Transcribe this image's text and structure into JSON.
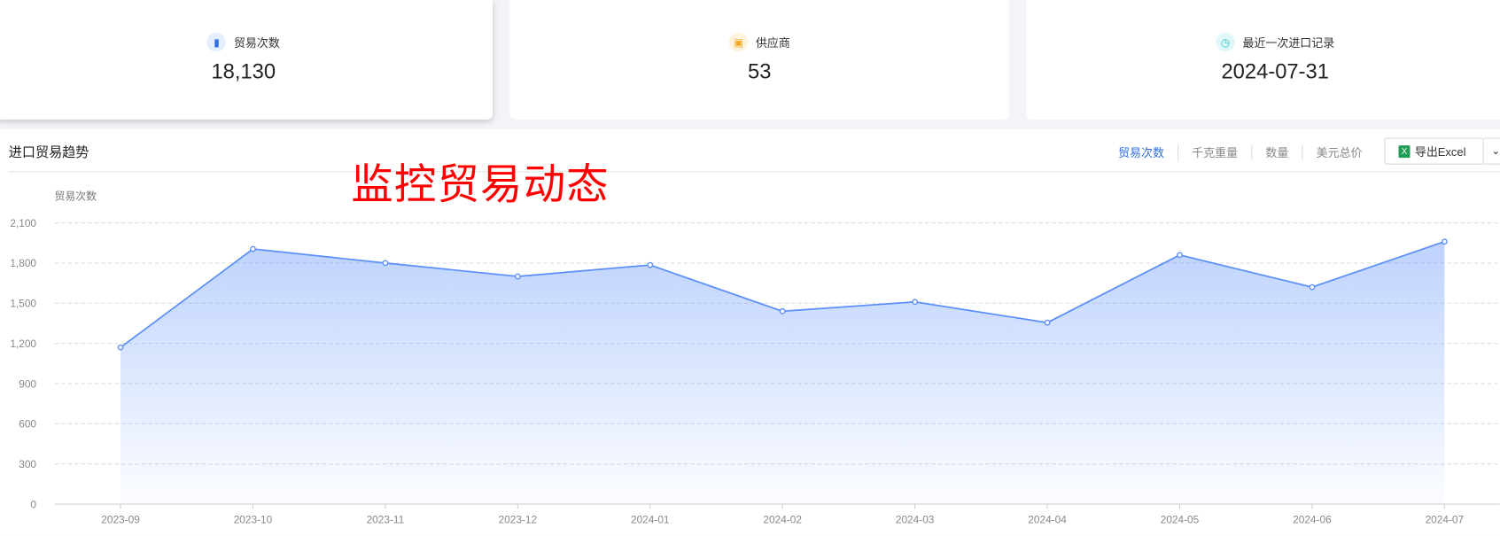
{
  "stats": [
    {
      "label": "贸易次数",
      "value": "18,130",
      "icon": "bar-chart-icon",
      "color": "#2f6fe0",
      "bg": "#e6efff"
    },
    {
      "label": "供应商",
      "value": "53",
      "icon": "store-icon",
      "color": "#f5a623",
      "bg": "#fff3e0"
    },
    {
      "label": "最近一次进口记录",
      "value": "2024-07-31",
      "icon": "clock-icon",
      "color": "#1cc3c3",
      "bg": "#e2f8f8"
    }
  ],
  "panel": {
    "title": "进口贸易趋势",
    "tabs": [
      "贸易次数",
      "千克重量",
      "数量",
      "美元总价"
    ],
    "active_tab": "贸易次数",
    "export_label": "导出Excel",
    "overlay_text": "监控贸易动态"
  },
  "chart_data": {
    "type": "area",
    "ylabel": "贸易次数",
    "categories": [
      "2023-09",
      "2023-10",
      "2023-11",
      "2023-12",
      "2024-01",
      "2024-02",
      "2024-03",
      "2024-04",
      "2024-05",
      "2024-06",
      "2024-07"
    ],
    "values": [
      1170,
      1905,
      1800,
      1700,
      1785,
      1440,
      1510,
      1355,
      1860,
      1620,
      1960
    ],
    "ylim": [
      0,
      2100
    ],
    "yticks": [
      "0",
      "300",
      "600",
      "900",
      "1,200",
      "1,500",
      "1,800",
      "2,100"
    ],
    "grid": true,
    "color": "#5b8ff9"
  }
}
